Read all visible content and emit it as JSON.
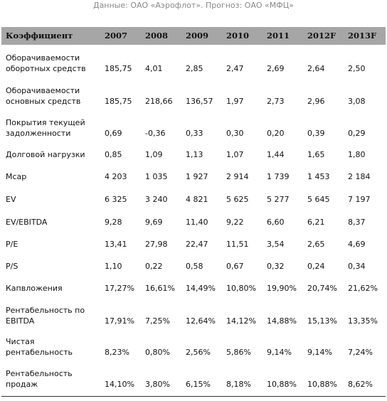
{
  "caption": "Данные: ОАО «Аэрофлот». Прогноз: ОАО «МФЦ»",
  "table": {
    "columns": [
      "Коэффициент",
      "2007",
      "2008",
      "2009",
      "2010",
      "2011",
      "2012F",
      "2013F"
    ],
    "rows": [
      {
        "label": [
          "Оборачиваемости",
          "оборотных средств"
        ],
        "cells": [
          "185,75",
          "4,01",
          "2,85",
          "2,47",
          "2,69",
          "2,64",
          "2,50"
        ]
      },
      {
        "label": [
          "Оборачиваемости",
          "основных средств"
        ],
        "cells": [
          "185,75",
          "218,66",
          "136,57",
          "1,97",
          "2,73",
          "2,96",
          "3,08"
        ]
      },
      {
        "label": [
          "Покрытия текущей",
          "задолженности"
        ],
        "cells": [
          "0,69",
          "-0,36",
          "0,33",
          "0,30",
          "0,20",
          "0,39",
          "0,29"
        ]
      },
      {
        "label": [
          "Долговой нагрузки"
        ],
        "cells": [
          "0,85",
          "1,09",
          "1,13",
          "1,07",
          "1,44",
          "1,65",
          "1,80"
        ]
      },
      {
        "label": [
          "Mcap"
        ],
        "cells": [
          "4 203",
          "1 035",
          "1 927",
          "2 914",
          "1 739",
          "1 453",
          "2 184"
        ]
      },
      {
        "label": [
          "EV"
        ],
        "cells": [
          "6 325",
          "3 240",
          "4 821",
          "5 625",
          "5 277",
          "5 645",
          "7 197"
        ]
      },
      {
        "label": [
          "EV/EBITDA"
        ],
        "cells": [
          "9,28",
          "9,69",
          "11,40",
          "9,22",
          "6,60",
          "6,21",
          "8,37"
        ]
      },
      {
        "label": [
          "P/E"
        ],
        "cells": [
          "13,41",
          "27,98",
          "22,47",
          "11,51",
          "3,54",
          "2,65",
          "4,69"
        ]
      },
      {
        "label": [
          "P/S"
        ],
        "cells": [
          "1,10",
          "0,22",
          "0,58",
          "0,67",
          "0,32",
          "0,24",
          "0,34"
        ]
      },
      {
        "label": [
          "Капвложения"
        ],
        "cells": [
          "17,27%",
          "16,61%",
          "14,49%",
          "10,80%",
          "19,90%",
          "20,74%",
          "21,62%"
        ]
      },
      {
        "label": [
          "Рентабельность по",
          "EBITDA"
        ],
        "cells": [
          "17,91%",
          "7,25%",
          "12,64%",
          "14,12%",
          "14,88%",
          "15,13%",
          "13,35%"
        ]
      },
      {
        "label": [
          "Чистая",
          "рентабельность"
        ],
        "cells": [
          "8,23%",
          "0,80%",
          "2,56%",
          "5,86%",
          "9,14%",
          "9,14%",
          "7,24%"
        ]
      },
      {
        "label": [
          "Рентабельность",
          "продаж"
        ],
        "cells": [
          "14,10%",
          "3,80%",
          "6,15%",
          "8,18%",
          "10,88%",
          "10,88%",
          "8,62%"
        ]
      }
    ]
  }
}
